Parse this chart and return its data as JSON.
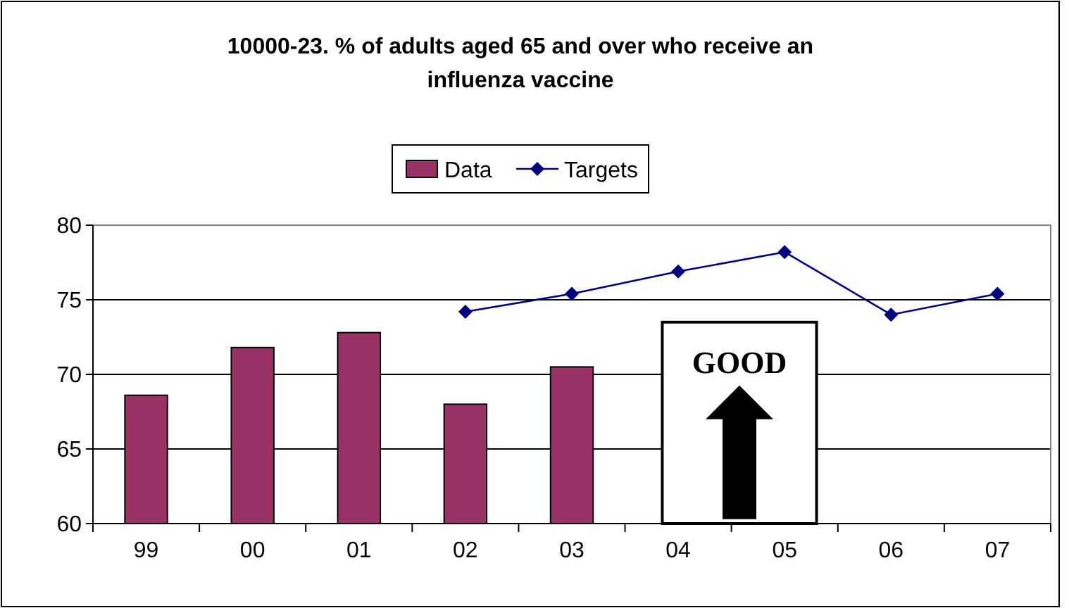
{
  "chart_data": {
    "type": "bar",
    "title": "10000-23. % of adults aged 65 and over who receive an influenza vaccine",
    "categories": [
      "99",
      "00",
      "01",
      "02",
      "03",
      "04",
      "05",
      "06",
      "07"
    ],
    "series": [
      {
        "name": "Data",
        "color": "#993366",
        "values": [
          68.6,
          71.8,
          72.8,
          68.0,
          70.5,
          null,
          null,
          null,
          null
        ]
      },
      {
        "name": "Targets",
        "type": "line",
        "color": "#000080",
        "marker": "diamond",
        "values": [
          null,
          null,
          null,
          74.2,
          75.4,
          76.9,
          78.2,
          74.0,
          75.4
        ]
      }
    ],
    "ylim": [
      60,
      80
    ],
    "yticks": [
      60,
      65,
      70,
      75,
      80
    ],
    "grid": "y",
    "legend": "top",
    "annotations": [
      "GOOD"
    ]
  }
}
